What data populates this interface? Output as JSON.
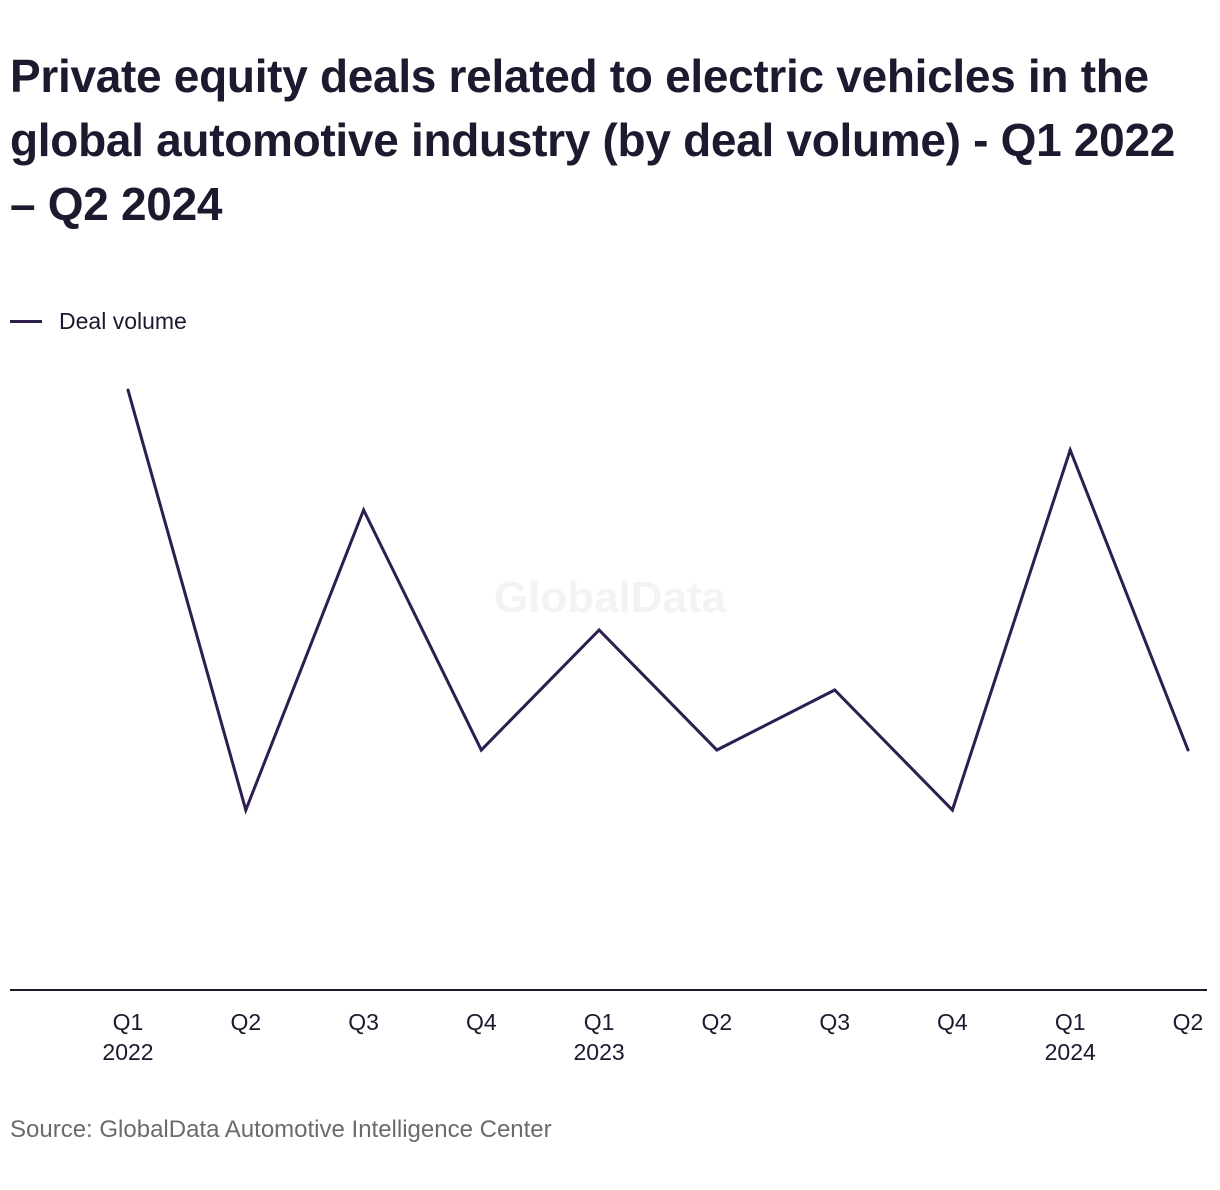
{
  "title": "Private equity deals related to electric vehicles in the global automotive industry (by deal volume) - Q1 2022 – Q2 2024",
  "watermark": "GlobalData",
  "source": "Source: GlobalData Automotive Intelligence Center",
  "colors": {
    "line": "#2d1e4f",
    "axis": "#1b1a2e",
    "watermark": "#f3f3f3"
  },
  "chart_data": {
    "type": "line",
    "title": "Private equity deals related to electric vehicles in the global automotive industry (by deal volume) - Q1 2022 – Q2 2024",
    "xlabel": "",
    "ylabel": "",
    "categories": [
      "Q1 2022",
      "Q2 2022",
      "Q3 2022",
      "Q4 2022",
      "Q1 2023",
      "Q2 2023",
      "Q3 2023",
      "Q4 2023",
      "Q1 2024",
      "Q2 2024"
    ],
    "tick_labels": [
      {
        "quarter": "Q1",
        "year": "2022"
      },
      {
        "quarter": "Q2",
        "year": ""
      },
      {
        "quarter": "Q3",
        "year": ""
      },
      {
        "quarter": "Q4",
        "year": ""
      },
      {
        "quarter": "Q1",
        "year": "2023"
      },
      {
        "quarter": "Q2",
        "year": ""
      },
      {
        "quarter": "Q3",
        "year": ""
      },
      {
        "quarter": "Q4",
        "year": ""
      },
      {
        "quarter": "Q1",
        "year": "2024"
      },
      {
        "quarter": "Q2",
        "year": ""
      }
    ],
    "series": [
      {
        "name": "Deal volume",
        "values": [
          10,
          3,
          8,
          4,
          6,
          4,
          5,
          3,
          9,
          4
        ]
      }
    ],
    "ylim": [
      0,
      10
    ],
    "grid": false,
    "legend": "top-left"
  }
}
